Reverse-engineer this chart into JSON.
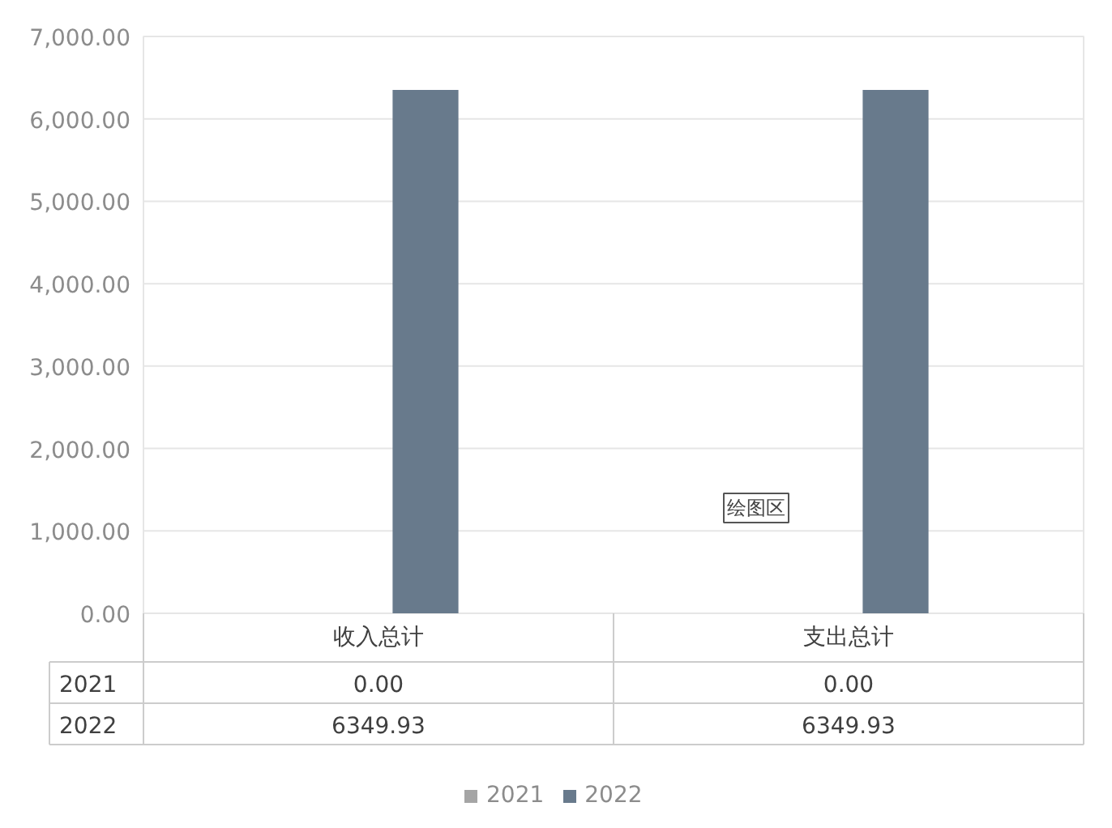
{
  "chart_data": {
    "type": "bar",
    "categories": [
      "收入总计",
      "支出总计"
    ],
    "series": [
      {
        "name": "2021",
        "color": "#a5a5a5",
        "values": [
          0,
          0
        ],
        "value_labels": [
          "0.00",
          "0.00"
        ]
      },
      {
        "name": "2022",
        "color": "#687a8c",
        "values": [
          6349.93,
          6349.93
        ],
        "value_labels": [
          "6349.93",
          "6349.93"
        ]
      }
    ],
    "ylim": [
      0,
      7000
    ],
    "yticks": [
      {
        "value": 0,
        "label": "0.00"
      },
      {
        "value": 1000,
        "label": "1,000.00"
      },
      {
        "value": 2000,
        "label": "2,000.00"
      },
      {
        "value": 3000,
        "label": "3,000.00"
      },
      {
        "value": 4000,
        "label": "4,000.00"
      },
      {
        "value": 5000,
        "label": "5,000.00"
      },
      {
        "value": 6000,
        "label": "6,000.00"
      },
      {
        "value": 7000,
        "label": "7,000.00"
      }
    ],
    "grid": "y",
    "legend": "bottom",
    "annotations": [
      "绘图区"
    ]
  }
}
